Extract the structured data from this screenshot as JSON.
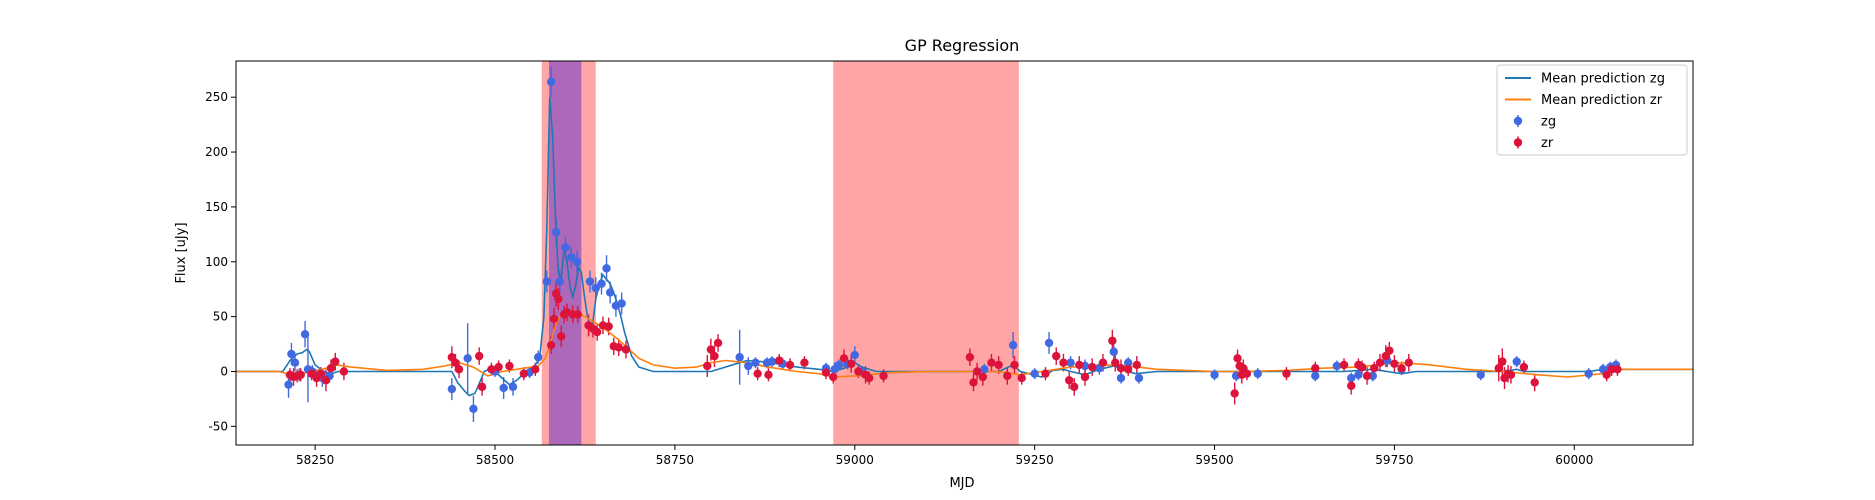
{
  "chart_data": {
    "type": "scatter",
    "title": "GP Regression",
    "xlabel": "MJD",
    "ylabel": "Flux [uJy]",
    "xlim": [
      58140,
      60165
    ],
    "ylim": [
      -67,
      283
    ],
    "xticks": [
      58250,
      58500,
      58750,
      59000,
      59250,
      59500,
      59750,
      60000
    ],
    "yticks": [
      -50,
      0,
      50,
      100,
      150,
      200,
      250
    ],
    "legend_position": "top-right",
    "legend": [
      "Mean prediction zg",
      "Mean prediction zr",
      "zg",
      "zr"
    ],
    "shaded_regions": [
      {
        "x0": 58565,
        "x1": 58640,
        "color": "#ff7f7f"
      },
      {
        "x0": 58970,
        "x1": 59228,
        "color": "#ff7f7f"
      },
      {
        "x0": 58575,
        "x1": 58620,
        "color": "#8a4fc2"
      }
    ],
    "lines": [
      {
        "name": "Mean prediction zg",
        "color": "#1f77b4",
        "x": [
          58140,
          58205,
          58215,
          58225,
          58232,
          58238,
          58242,
          58250,
          58262,
          58272,
          58282,
          58290,
          58300,
          58320,
          58400,
          58440,
          58448,
          58458,
          58464,
          58472,
          58480,
          58485,
          58492,
          58500,
          58510,
          58520,
          58530,
          58540,
          58548,
          58556,
          58562,
          58568,
          58572,
          58576,
          58580,
          58584,
          58588,
          58592,
          58596,
          58600,
          58604,
          58608,
          58612,
          58616,
          58620,
          58624,
          58628,
          58632,
          58636,
          58640,
          58645,
          58650,
          58655,
          58660,
          58665,
          58670,
          58675,
          58680,
          58690,
          58700,
          58720,
          58760,
          58800,
          58820,
          58840,
          58850,
          58870,
          58885,
          58900,
          58920,
          58950,
          58970,
          58990,
          59000,
          59010,
          59030,
          59100,
          59200,
          59220,
          59230,
          59260,
          59268,
          59275,
          59290,
          59300,
          59320,
          59340,
          59360,
          59380,
          59390,
          59420,
          59500,
          59640,
          59680,
          59700,
          59720,
          59740,
          59760,
          59780,
          59820,
          59900,
          59910,
          59920,
          59930,
          59950,
          60000,
          60020,
          60040,
          60060,
          60165
        ],
        "y": [
          0,
          0,
          10,
          16,
          17,
          20,
          18,
          6,
          0,
          -2,
          0,
          0,
          0,
          0,
          0,
          0,
          -10,
          -18,
          -22,
          -20,
          -8,
          0,
          2,
          0,
          -6,
          -12,
          -8,
          -2,
          2,
          6,
          12,
          50,
          130,
          250,
          215,
          140,
          90,
          84,
          112,
          100,
          78,
          68,
          78,
          95,
          90,
          70,
          52,
          42,
          45,
          66,
          80,
          88,
          84,
          80,
          72,
          62,
          50,
          36,
          14,
          4,
          0,
          0,
          0,
          4,
          8,
          10,
          9,
          8,
          6,
          4,
          2,
          0,
          4,
          8,
          4,
          0,
          0,
          0,
          6,
          0,
          -5,
          -2,
          1,
          2,
          0,
          -3,
          2,
          5,
          0,
          -2,
          0,
          0,
          0,
          0,
          1,
          2,
          0,
          -2,
          0,
          0,
          0,
          1,
          2,
          0,
          0,
          0,
          0,
          2,
          2,
          2
        ]
      },
      {
        "name": "Mean prediction zr",
        "color": "#ff7f0e",
        "x": [
          58140,
          58200,
          58215,
          58230,
          58245,
          58260,
          58280,
          58300,
          58350,
          58400,
          58430,
          58450,
          58470,
          58490,
          58510,
          58540,
          58560,
          58570,
          58578,
          58585,
          58592,
          58600,
          58610,
          58620,
          58630,
          58640,
          58650,
          58660,
          58670,
          58680,
          58690,
          58700,
          58720,
          58750,
          58780,
          58800,
          58820,
          58850,
          58880,
          58900,
          58920,
          58950,
          58970,
          59000,
          59050,
          59100,
          59150,
          59200,
          59230,
          59260,
          59300,
          59340,
          59380,
          59420,
          59500,
          59540,
          59600,
          59650,
          59700,
          59740,
          59760,
          59800,
          59850,
          59900,
          59950,
          59990,
          60040,
          60060,
          60165
        ],
        "y": [
          0,
          0,
          -3,
          -2,
          0,
          2,
          6,
          4,
          1,
          2,
          5,
          8,
          4,
          -4,
          0,
          3,
          5,
          12,
          28,
          44,
          52,
          55,
          55,
          52,
          48,
          44,
          40,
          35,
          30,
          24,
          18,
          12,
          6,
          3,
          4,
          8,
          10,
          8,
          4,
          2,
          0,
          -2,
          -5,
          -4,
          -1,
          0,
          0,
          0,
          -3,
          0,
          4,
          6,
          5,
          2,
          0,
          0,
          1,
          3,
          4,
          7,
          8,
          6,
          2,
          0,
          -3,
          -5,
          -2,
          2,
          2
        ]
      }
    ],
    "series": [
      {
        "name": "zg",
        "color": "#4169e1",
        "points": [
          [
            58213,
            -12,
            12
          ],
          [
            58217,
            16,
            10
          ],
          [
            58222,
            8,
            8
          ],
          [
            58228,
            -3,
            6
          ],
          [
            58236,
            34,
            12
          ],
          [
            58240,
            2,
            30
          ],
          [
            58246,
            0,
            6
          ],
          [
            58260,
            -6,
            8
          ],
          [
            58270,
            -4,
            6
          ],
          [
            58440,
            -16,
            10
          ],
          [
            58462,
            12,
            32
          ],
          [
            58470,
            -34,
            12
          ],
          [
            58500,
            0,
            5
          ],
          [
            58512,
            -15,
            10
          ],
          [
            58525,
            -14,
            8
          ],
          [
            58548,
            -1,
            5
          ],
          [
            58560,
            13,
            6
          ],
          [
            58572,
            82,
            10
          ],
          [
            58578,
            264,
            14
          ],
          [
            58585,
            127,
            12
          ],
          [
            58590,
            82,
            10
          ],
          [
            58598,
            113,
            10
          ],
          [
            58606,
            104,
            10
          ],
          [
            58614,
            100,
            10
          ],
          [
            58632,
            82,
            10
          ],
          [
            58640,
            76,
            10
          ],
          [
            58648,
            80,
            10
          ],
          [
            58655,
            94,
            12
          ],
          [
            58660,
            72,
            10
          ],
          [
            58668,
            60,
            10
          ],
          [
            58676,
            62,
            10
          ],
          [
            58840,
            13,
            25
          ],
          [
            58852,
            5,
            8
          ],
          [
            58862,
            8,
            5
          ],
          [
            58878,
            8,
            5
          ],
          [
            58885,
            9,
            5
          ],
          [
            58900,
            7,
            5
          ],
          [
            58960,
            3,
            5
          ],
          [
            58972,
            2,
            6
          ],
          [
            58978,
            6,
            5
          ],
          [
            58990,
            7,
            5
          ],
          [
            59000,
            15,
            8
          ],
          [
            59010,
            0,
            5
          ],
          [
            59180,
            2,
            5
          ],
          [
            59220,
            24,
            12
          ],
          [
            59250,
            -2,
            5
          ],
          [
            59270,
            26,
            10
          ],
          [
            59300,
            8,
            6
          ],
          [
            59320,
            5,
            6
          ],
          [
            59340,
            3,
            6
          ],
          [
            59360,
            18,
            10
          ],
          [
            59370,
            -6,
            5
          ],
          [
            59380,
            8,
            5
          ],
          [
            59395,
            -6,
            5
          ],
          [
            59500,
            -3,
            5
          ],
          [
            59530,
            -4,
            5
          ],
          [
            59560,
            -2,
            5
          ],
          [
            59640,
            -4,
            5
          ],
          [
            59670,
            5,
            5
          ],
          [
            59690,
            -6,
            5
          ],
          [
            59700,
            -3,
            5
          ],
          [
            59720,
            -4,
            5
          ],
          [
            59740,
            10,
            6
          ],
          [
            59760,
            2,
            5
          ],
          [
            59870,
            -3,
            5
          ],
          [
            59920,
            9,
            5
          ],
          [
            60020,
            -2,
            5
          ],
          [
            60040,
            2,
            5
          ],
          [
            60050,
            4,
            5
          ],
          [
            60058,
            6,
            5
          ]
        ]
      },
      {
        "name": "zr",
        "color": "#dc143c",
        "points": [
          [
            58215,
            -3,
            6
          ],
          [
            58220,
            -5,
            8
          ],
          [
            58225,
            -4,
            6
          ],
          [
            58230,
            -3,
            6
          ],
          [
            58245,
            -2,
            6
          ],
          [
            58252,
            -6,
            8
          ],
          [
            58258,
            -2,
            6
          ],
          [
            58265,
            -8,
            10
          ],
          [
            58272,
            3,
            8
          ],
          [
            58278,
            9,
            8
          ],
          [
            58290,
            0,
            8
          ],
          [
            58440,
            13,
            10
          ],
          [
            58445,
            8,
            8
          ],
          [
            58450,
            2,
            8
          ],
          [
            58478,
            14,
            8
          ],
          [
            58482,
            -14,
            8
          ],
          [
            58495,
            2,
            6
          ],
          [
            58505,
            4,
            6
          ],
          [
            58520,
            5,
            6
          ],
          [
            58540,
            -2,
            6
          ],
          [
            58556,
            2,
            6
          ],
          [
            58578,
            24,
            8
          ],
          [
            58582,
            48,
            10
          ],
          [
            58585,
            71,
            12
          ],
          [
            58588,
            66,
            10
          ],
          [
            58592,
            32,
            10
          ],
          [
            58596,
            52,
            8
          ],
          [
            58600,
            54,
            8
          ],
          [
            58608,
            52,
            8
          ],
          [
            58615,
            52,
            8
          ],
          [
            58630,
            42,
            10
          ],
          [
            58636,
            39,
            8
          ],
          [
            58642,
            36,
            8
          ],
          [
            58650,
            42,
            8
          ],
          [
            58658,
            41,
            8
          ],
          [
            58665,
            23,
            8
          ],
          [
            58672,
            22,
            8
          ],
          [
            58682,
            20,
            8
          ],
          [
            58795,
            5,
            10
          ],
          [
            58800,
            20,
            10
          ],
          [
            58805,
            14,
            10
          ],
          [
            58810,
            26,
            8
          ],
          [
            58865,
            -2,
            6
          ],
          [
            58880,
            -3,
            6
          ],
          [
            58895,
            10,
            6
          ],
          [
            58910,
            6,
            6
          ],
          [
            58930,
            8,
            6
          ],
          [
            58960,
            -1,
            6
          ],
          [
            58970,
            -5,
            6
          ],
          [
            58985,
            12,
            8
          ],
          [
            58995,
            7,
            8
          ],
          [
            59005,
            0,
            6
          ],
          [
            59015,
            -3,
            8
          ],
          [
            59020,
            -6,
            6
          ],
          [
            59040,
            -4,
            6
          ],
          [
            59160,
            13,
            8
          ],
          [
            59165,
            -10,
            8
          ],
          [
            59170,
            0,
            8
          ],
          [
            59178,
            -5,
            8
          ],
          [
            59190,
            8,
            8
          ],
          [
            59200,
            6,
            8
          ],
          [
            59212,
            -4,
            8
          ],
          [
            59222,
            6,
            8
          ],
          [
            59232,
            -6,
            6
          ],
          [
            59265,
            -2,
            6
          ],
          [
            59280,
            14,
            8
          ],
          [
            59290,
            8,
            8
          ],
          [
            59298,
            -8,
            8
          ],
          [
            59305,
            -14,
            8
          ],
          [
            59312,
            6,
            8
          ],
          [
            59320,
            -5,
            8
          ],
          [
            59330,
            4,
            8
          ],
          [
            59345,
            8,
            8
          ],
          [
            59358,
            28,
            10
          ],
          [
            59362,
            8,
            8
          ],
          [
            59370,
            3,
            8
          ],
          [
            59380,
            2,
            6
          ],
          [
            59392,
            6,
            8
          ],
          [
            59528,
            -20,
            10
          ],
          [
            59532,
            12,
            8
          ],
          [
            59535,
            5,
            8
          ],
          [
            59538,
            -3,
            8
          ],
          [
            59540,
            3,
            8
          ],
          [
            59545,
            -2,
            6
          ],
          [
            59600,
            -2,
            6
          ],
          [
            59640,
            3,
            6
          ],
          [
            59680,
            6,
            6
          ],
          [
            59690,
            -13,
            8
          ],
          [
            59700,
            6,
            6
          ],
          [
            59705,
            4,
            6
          ],
          [
            59712,
            -4,
            8
          ],
          [
            59722,
            3,
            6
          ],
          [
            59730,
            8,
            8
          ],
          [
            59738,
            14,
            10
          ],
          [
            59743,
            19,
            8
          ],
          [
            59750,
            7,
            8
          ],
          [
            59760,
            3,
            6
          ],
          [
            59770,
            8,
            8
          ],
          [
            59895,
            3,
            12
          ],
          [
            59900,
            9,
            12
          ],
          [
            59903,
            -6,
            10
          ],
          [
            59908,
            -2,
            8
          ],
          [
            59912,
            -3,
            8
          ],
          [
            59930,
            4,
            6
          ],
          [
            59945,
            -10,
            8
          ],
          [
            60045,
            -3,
            6
          ],
          [
            60052,
            2,
            6
          ],
          [
            60060,
            2,
            6
          ]
        ]
      }
    ]
  }
}
